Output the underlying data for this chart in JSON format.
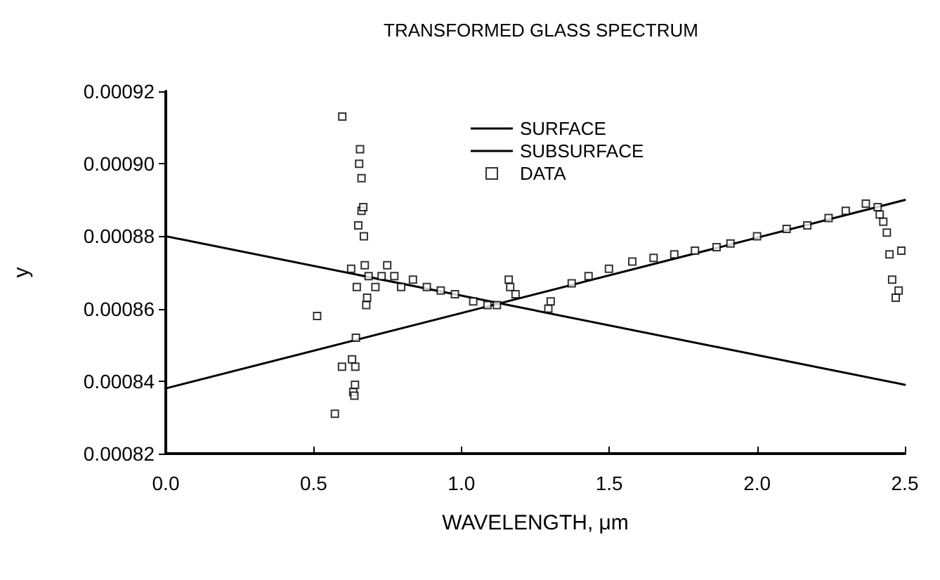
{
  "chart_data": {
    "type": "scatter",
    "title": "TRANSFORMED GLASS SPECTRUM",
    "xlabel": "WAVELENGTH, μm",
    "ylabel": "y",
    "xlim": [
      0,
      2.5
    ],
    "xticks": [
      {
        "value": 0,
        "label": "0.0"
      },
      0.5,
      {
        "value": 1,
        "label": "1.0"
      },
      1.5,
      {
        "value": 2,
        "label": "2.0"
      },
      2.5
    ],
    "ylim": [
      0.00082,
      0.00092
    ],
    "yticks": [
      {
        "value": 0.00082,
        "label": "0.00082"
      },
      {
        "value": 0.00084,
        "label": "0.00084"
      },
      {
        "value": 0.00086,
        "label": "0.00086"
      },
      {
        "value": 0.00088,
        "label": "0.00088"
      },
      {
        "value": 0.0009,
        "label": "0.00090"
      },
      {
        "value": 0.00092,
        "label": "0.00092"
      }
    ],
    "grid": false,
    "legend": "top",
    "series": [
      {
        "name": "SURFACE",
        "type": "line",
        "marker": "none",
        "color": "#000000",
        "x": [
          0,
          2.5
        ],
        "values": [
          0.00088,
          0.000839
        ]
      },
      {
        "name": "SUBSURFACE",
        "type": "line",
        "marker": "none",
        "color": "#000000",
        "x": [
          0,
          2.5
        ],
        "values": [
          0.000838,
          0.00089
        ]
      },
      {
        "name": "DATA",
        "marker": "square",
        "color": "#000000",
        "x": [
          0.512,
          0.572,
          0.596,
          0.597,
          0.627,
          0.63,
          0.634,
          0.638,
          0.64,
          0.641,
          0.643,
          0.646,
          0.651,
          0.654,
          0.657,
          0.662,
          0.662,
          0.668,
          0.67,
          0.673,
          0.678,
          0.681,
          0.686,
          0.709,
          0.73,
          0.749,
          0.773,
          0.796,
          0.836,
          0.883,
          0.93,
          0.978,
          1.04,
          1.088,
          1.12,
          1.16,
          1.165,
          1.183,
          1.294,
          1.302,
          1.373,
          1.43,
          1.499,
          1.578,
          1.65,
          1.72,
          1.79,
          1.863,
          1.91,
          2.0,
          2.1,
          2.17,
          2.242,
          2.3,
          2.368,
          2.408,
          2.415,
          2.427,
          2.439,
          2.448,
          2.457,
          2.469,
          2.479,
          2.488
        ],
        "values": [
          0.000858,
          0.000831,
          0.000844,
          0.000913,
          0.000871,
          0.000846,
          0.000837,
          0.000836,
          0.000839,
          0.000844,
          0.000852,
          0.000866,
          0.000883,
          0.0009,
          0.000904,
          0.000896,
          0.000887,
          0.000888,
          0.00088,
          0.000872,
          0.000861,
          0.000863,
          0.000869,
          0.000866,
          0.000869,
          0.000872,
          0.000869,
          0.000866,
          0.000868,
          0.000866,
          0.000865,
          0.000864,
          0.000862,
          0.000861,
          0.000861,
          0.000868,
          0.000866,
          0.000864,
          0.00086,
          0.000862,
          0.000867,
          0.000869,
          0.000871,
          0.000873,
          0.000874,
          0.000875,
          0.000876,
          0.000877,
          0.000878,
          0.00088,
          0.000882,
          0.000883,
          0.000885,
          0.000887,
          0.000889,
          0.000888,
          0.000886,
          0.000884,
          0.000881,
          0.000875,
          0.000868,
          0.000863,
          0.000865,
          0.000876
        ]
      }
    ]
  }
}
